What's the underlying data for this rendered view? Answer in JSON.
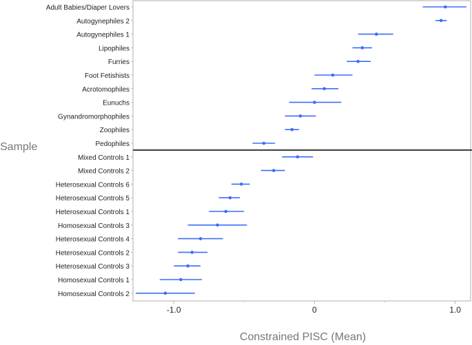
{
  "chart_data": {
    "type": "scatter",
    "subtype": "forest-plot-with-intervals",
    "title": "",
    "xlabel": "Constrained PISC (Mean)",
    "ylabel": "Sample",
    "xlim": [
      -1.29,
      1.11
    ],
    "xticks": [
      -1.0,
      0,
      1.0
    ],
    "xtick_labels": [
      "-1.0",
      "0",
      "1.0"
    ],
    "grid": false,
    "point_color": "#3b6ef5",
    "divider_after_index": 10,
    "rows": [
      {
        "label": "Adult Babies/Diaper Lovers",
        "mean": 0.93,
        "lo": 0.77,
        "hi": 1.08
      },
      {
        "label": "Autogynephiles 2",
        "mean": 0.9,
        "lo": 0.86,
        "hi": 0.94
      },
      {
        "label": "Autogynephiles 1",
        "mean": 0.44,
        "lo": 0.31,
        "hi": 0.56
      },
      {
        "label": "Lipophiles",
        "mean": 0.34,
        "lo": 0.27,
        "hi": 0.41
      },
      {
        "label": "Furries",
        "mean": 0.31,
        "lo": 0.23,
        "hi": 0.4
      },
      {
        "label": "Foot Fetishists",
        "mean": 0.13,
        "lo": 0.0,
        "hi": 0.27
      },
      {
        "label": "Acrotomophiles",
        "mean": 0.07,
        "lo": -0.02,
        "hi": 0.17
      },
      {
        "label": "Eunuchs",
        "mean": 0.0,
        "lo": -0.18,
        "hi": 0.19
      },
      {
        "label": "Gynandromorphophiles",
        "mean": -0.1,
        "lo": -0.21,
        "hi": 0.01
      },
      {
        "label": "Zoophiles",
        "mean": -0.16,
        "lo": -0.21,
        "hi": -0.11
      },
      {
        "label": "Pedophiles",
        "mean": -0.36,
        "lo": -0.44,
        "hi": -0.28
      },
      {
        "label": "Mixed Controls 1",
        "mean": -0.12,
        "lo": -0.23,
        "hi": -0.01
      },
      {
        "label": "Mixed Controls 2",
        "mean": -0.29,
        "lo": -0.38,
        "hi": -0.21
      },
      {
        "label": "Heterosexual Controls 6",
        "mean": -0.52,
        "lo": -0.59,
        "hi": -0.46
      },
      {
        "label": "Heterosexual Controls 5",
        "mean": -0.6,
        "lo": -0.68,
        "hi": -0.53
      },
      {
        "label": "Heterosexual Controls 1",
        "mean": -0.63,
        "lo": -0.75,
        "hi": -0.5
      },
      {
        "label": "Homosexual Controls 3",
        "mean": -0.69,
        "lo": -0.9,
        "hi": -0.48
      },
      {
        "label": "Heterosexual Controls 4",
        "mean": -0.81,
        "lo": -0.97,
        "hi": -0.65
      },
      {
        "label": "Heterosexual Controls 2",
        "mean": -0.87,
        "lo": -0.97,
        "hi": -0.76
      },
      {
        "label": "Heterosexual Controls 3",
        "mean": -0.9,
        "lo": -1.0,
        "hi": -0.81
      },
      {
        "label": "Homosexual Controls 1",
        "mean": -0.95,
        "lo": -1.1,
        "hi": -0.8
      },
      {
        "label": "Homosexual Controls 2",
        "mean": -1.06,
        "lo": -1.27,
        "hi": -0.85
      }
    ]
  }
}
